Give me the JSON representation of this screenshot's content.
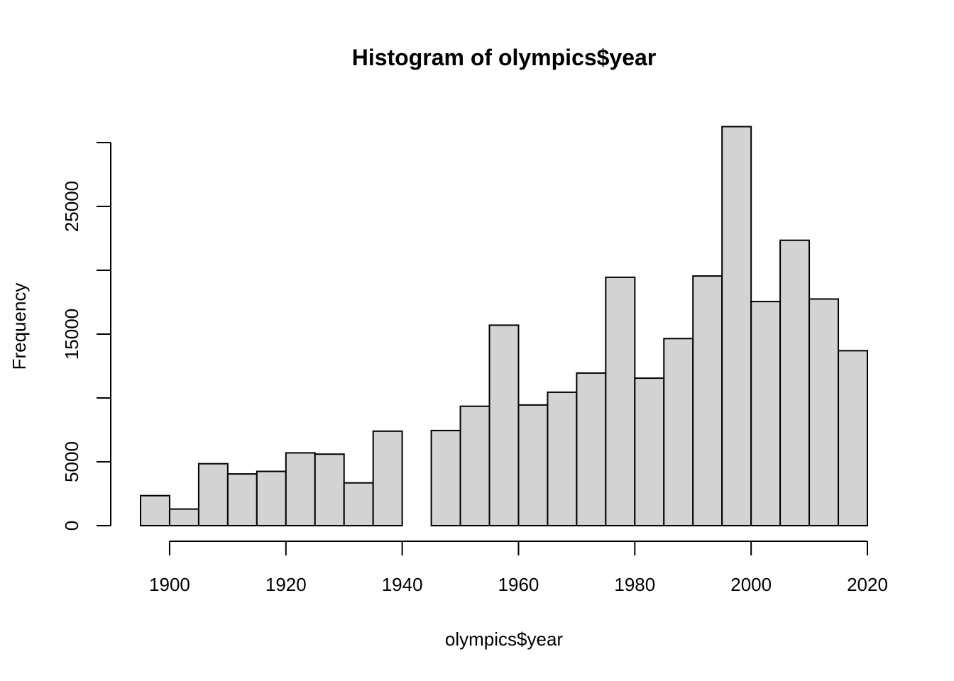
{
  "chart_data": {
    "type": "bar",
    "title": "Histogram of olympics$year",
    "xlabel": "olympics$year",
    "ylabel": "Frequency",
    "bin_width": 5,
    "bin_edges": [
      1895,
      1900,
      1905,
      1910,
      1915,
      1920,
      1925,
      1930,
      1935,
      1940,
      1945,
      1950,
      1955,
      1960,
      1965,
      1970,
      1975,
      1980,
      1985,
      1990,
      1995,
      2000,
      2005,
      2010,
      2015,
      2020
    ],
    "values": [
      2350,
      1300,
      4850,
      4050,
      4250,
      5700,
      5600,
      3350,
      7400,
      0,
      7450,
      9350,
      15700,
      9450,
      10450,
      11950,
      19450,
      11550,
      14650,
      19550,
      31250,
      17550,
      22350,
      17750,
      13700
    ],
    "xlim": [
      1895,
      2020
    ],
    "ylim": [
      0,
      30000
    ],
    "x_ticks": [
      1900,
      1920,
      1940,
      1960,
      1980,
      2000,
      2020
    ],
    "y_ticks": [
      0,
      5000,
      10000,
      15000,
      20000,
      25000,
      30000
    ],
    "y_tick_labels": [
      "0",
      "5000",
      "",
      "15000",
      "",
      "25000",
      ""
    ],
    "bar_color": "#d3d3d3",
    "border_color": "#000000",
    "grid": false
  }
}
